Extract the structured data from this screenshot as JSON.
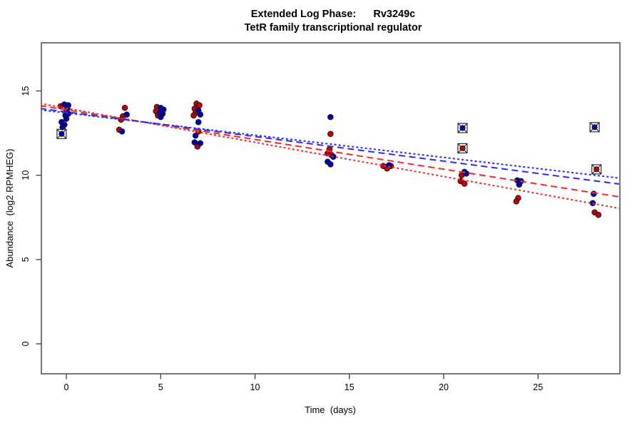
{
  "figure": {
    "title_line1": "Extended Log Phase:      Rv3249c",
    "title_line2": "TetR family transcriptional regulator",
    "xlabel": "Time  (days)",
    "ylabel": "Abundance  (log2 RPMHEG)"
  },
  "chart_data": {
    "type": "scatter",
    "title": "Extended Log Phase:      Rv3249c",
    "subtitle": "TetR family transcriptional regulator",
    "xlabel": "Time  (days)",
    "ylabel": "Abundance  (log2 RPMHEG)",
    "grid": false,
    "legend": "none",
    "x_ticks": [
      0,
      5,
      10,
      15,
      20,
      25
    ],
    "y_ticks": [
      0,
      5,
      10,
      15
    ],
    "xlim": [
      -1.4,
      29.3
    ],
    "ylim": [
      -1.8,
      17.9
    ],
    "marker_note": "points marked box=true are drawn as a square-with-X outlier symbol around the dot",
    "series": [
      {
        "name": "red",
        "color": "#C40000",
        "points": [
          {
            "d": -0.3,
            "v": 14.1
          },
          {
            "d": 3.1,
            "v": 14.0
          },
          {
            "d": 3.0,
            "v": 13.5
          },
          {
            "d": 2.9,
            "v": 13.3
          },
          {
            "d": 2.8,
            "v": 12.7
          },
          {
            "d": 4.8,
            "v": 14.05
          },
          {
            "d": 4.75,
            "v": 13.8
          },
          {
            "d": 4.85,
            "v": 13.55
          },
          {
            "d": 6.9,
            "v": 14.25
          },
          {
            "d": 7.05,
            "v": 14.15
          },
          {
            "d": 6.8,
            "v": 13.95
          },
          {
            "d": 6.85,
            "v": 13.7
          },
          {
            "d": 6.75,
            "v": 13.55
          },
          {
            "d": 7.0,
            "v": 12.6
          },
          {
            "d": 6.95,
            "v": 11.7
          },
          {
            "d": 14.0,
            "v": 12.45
          },
          {
            "d": 13.95,
            "v": 11.55
          },
          {
            "d": 13.85,
            "v": 11.3
          },
          {
            "d": 14.05,
            "v": 11.2
          },
          {
            "d": 16.8,
            "v": 10.55
          },
          {
            "d": 17.2,
            "v": 10.55
          },
          {
            "d": 17.0,
            "v": 10.4
          },
          {
            "d": 21.0,
            "v": 11.6,
            "box": true
          },
          {
            "d": 20.95,
            "v": 10.0
          },
          {
            "d": 20.9,
            "v": 9.65
          },
          {
            "d": 21.1,
            "v": 9.5
          },
          {
            "d": 23.95,
            "v": 8.65
          },
          {
            "d": 23.85,
            "v": 8.45
          },
          {
            "d": 28.1,
            "v": 10.35,
            "box": true
          },
          {
            "d": 28.0,
            "v": 7.8
          },
          {
            "d": 28.2,
            "v": 7.65
          }
        ]
      },
      {
        "name": "blue",
        "color": "#0000B4",
        "points": [
          {
            "d": -0.1,
            "v": 14.2
          },
          {
            "d": 0.1,
            "v": 14.15
          },
          {
            "d": 0.05,
            "v": 13.95
          },
          {
            "d": 0.0,
            "v": 13.8
          },
          {
            "d": 0.1,
            "v": 13.65
          },
          {
            "d": -0.05,
            "v": 13.55
          },
          {
            "d": 0.0,
            "v": 13.35
          },
          {
            "d": -0.25,
            "v": 13.15
          },
          {
            "d": -0.1,
            "v": 13.0
          },
          {
            "d": -0.2,
            "v": 12.85
          },
          {
            "d": -0.25,
            "v": 12.45,
            "box": true
          },
          {
            "d": 3.2,
            "v": 13.6
          },
          {
            "d": 2.95,
            "v": 12.6
          },
          {
            "d": 5.0,
            "v": 14.0
          },
          {
            "d": 5.15,
            "v": 13.9
          },
          {
            "d": 4.95,
            "v": 13.7
          },
          {
            "d": 5.1,
            "v": 13.65
          },
          {
            "d": 5.0,
            "v": 13.45
          },
          {
            "d": 7.0,
            "v": 13.85
          },
          {
            "d": 7.1,
            "v": 13.6
          },
          {
            "d": 7.0,
            "v": 13.15
          },
          {
            "d": 6.85,
            "v": 12.35
          },
          {
            "d": 6.8,
            "v": 11.95
          },
          {
            "d": 7.1,
            "v": 11.9
          },
          {
            "d": 14.0,
            "v": 13.45
          },
          {
            "d": 14.15,
            "v": 11.1
          },
          {
            "d": 13.85,
            "v": 10.8
          },
          {
            "d": 14.0,
            "v": 10.65
          },
          {
            "d": 17.1,
            "v": 10.6
          },
          {
            "d": 21.0,
            "v": 12.8,
            "box": true
          },
          {
            "d": 21.1,
            "v": 10.2
          },
          {
            "d": 21.2,
            "v": 10.1
          },
          {
            "d": 23.9,
            "v": 9.7
          },
          {
            "d": 24.1,
            "v": 9.65
          },
          {
            "d": 24.0,
            "v": 9.45
          },
          {
            "d": 28.0,
            "v": 12.85,
            "box": true
          },
          {
            "d": 27.95,
            "v": 8.9
          },
          {
            "d": 27.9,
            "v": 8.35
          }
        ]
      }
    ],
    "trend_lines": [
      {
        "series": "red",
        "style": "dotted",
        "color": "#F03030",
        "d": [
          -1.4,
          29.3
        ],
        "v": [
          14.26,
          8.04
        ]
      },
      {
        "series": "red",
        "style": "longdash",
        "color": "#F03030",
        "d": [
          -1.4,
          29.3
        ],
        "v": [
          14.13,
          8.72
        ]
      },
      {
        "series": "blue",
        "style": "longdash",
        "color": "#3030F0",
        "d": [
          -1.4,
          29.3
        ],
        "v": [
          13.96,
          9.48
        ]
      },
      {
        "series": "blue",
        "style": "dotted",
        "color": "#3030F0",
        "d": [
          -1.4,
          29.3
        ],
        "v": [
          13.88,
          9.83
        ]
      }
    ]
  }
}
